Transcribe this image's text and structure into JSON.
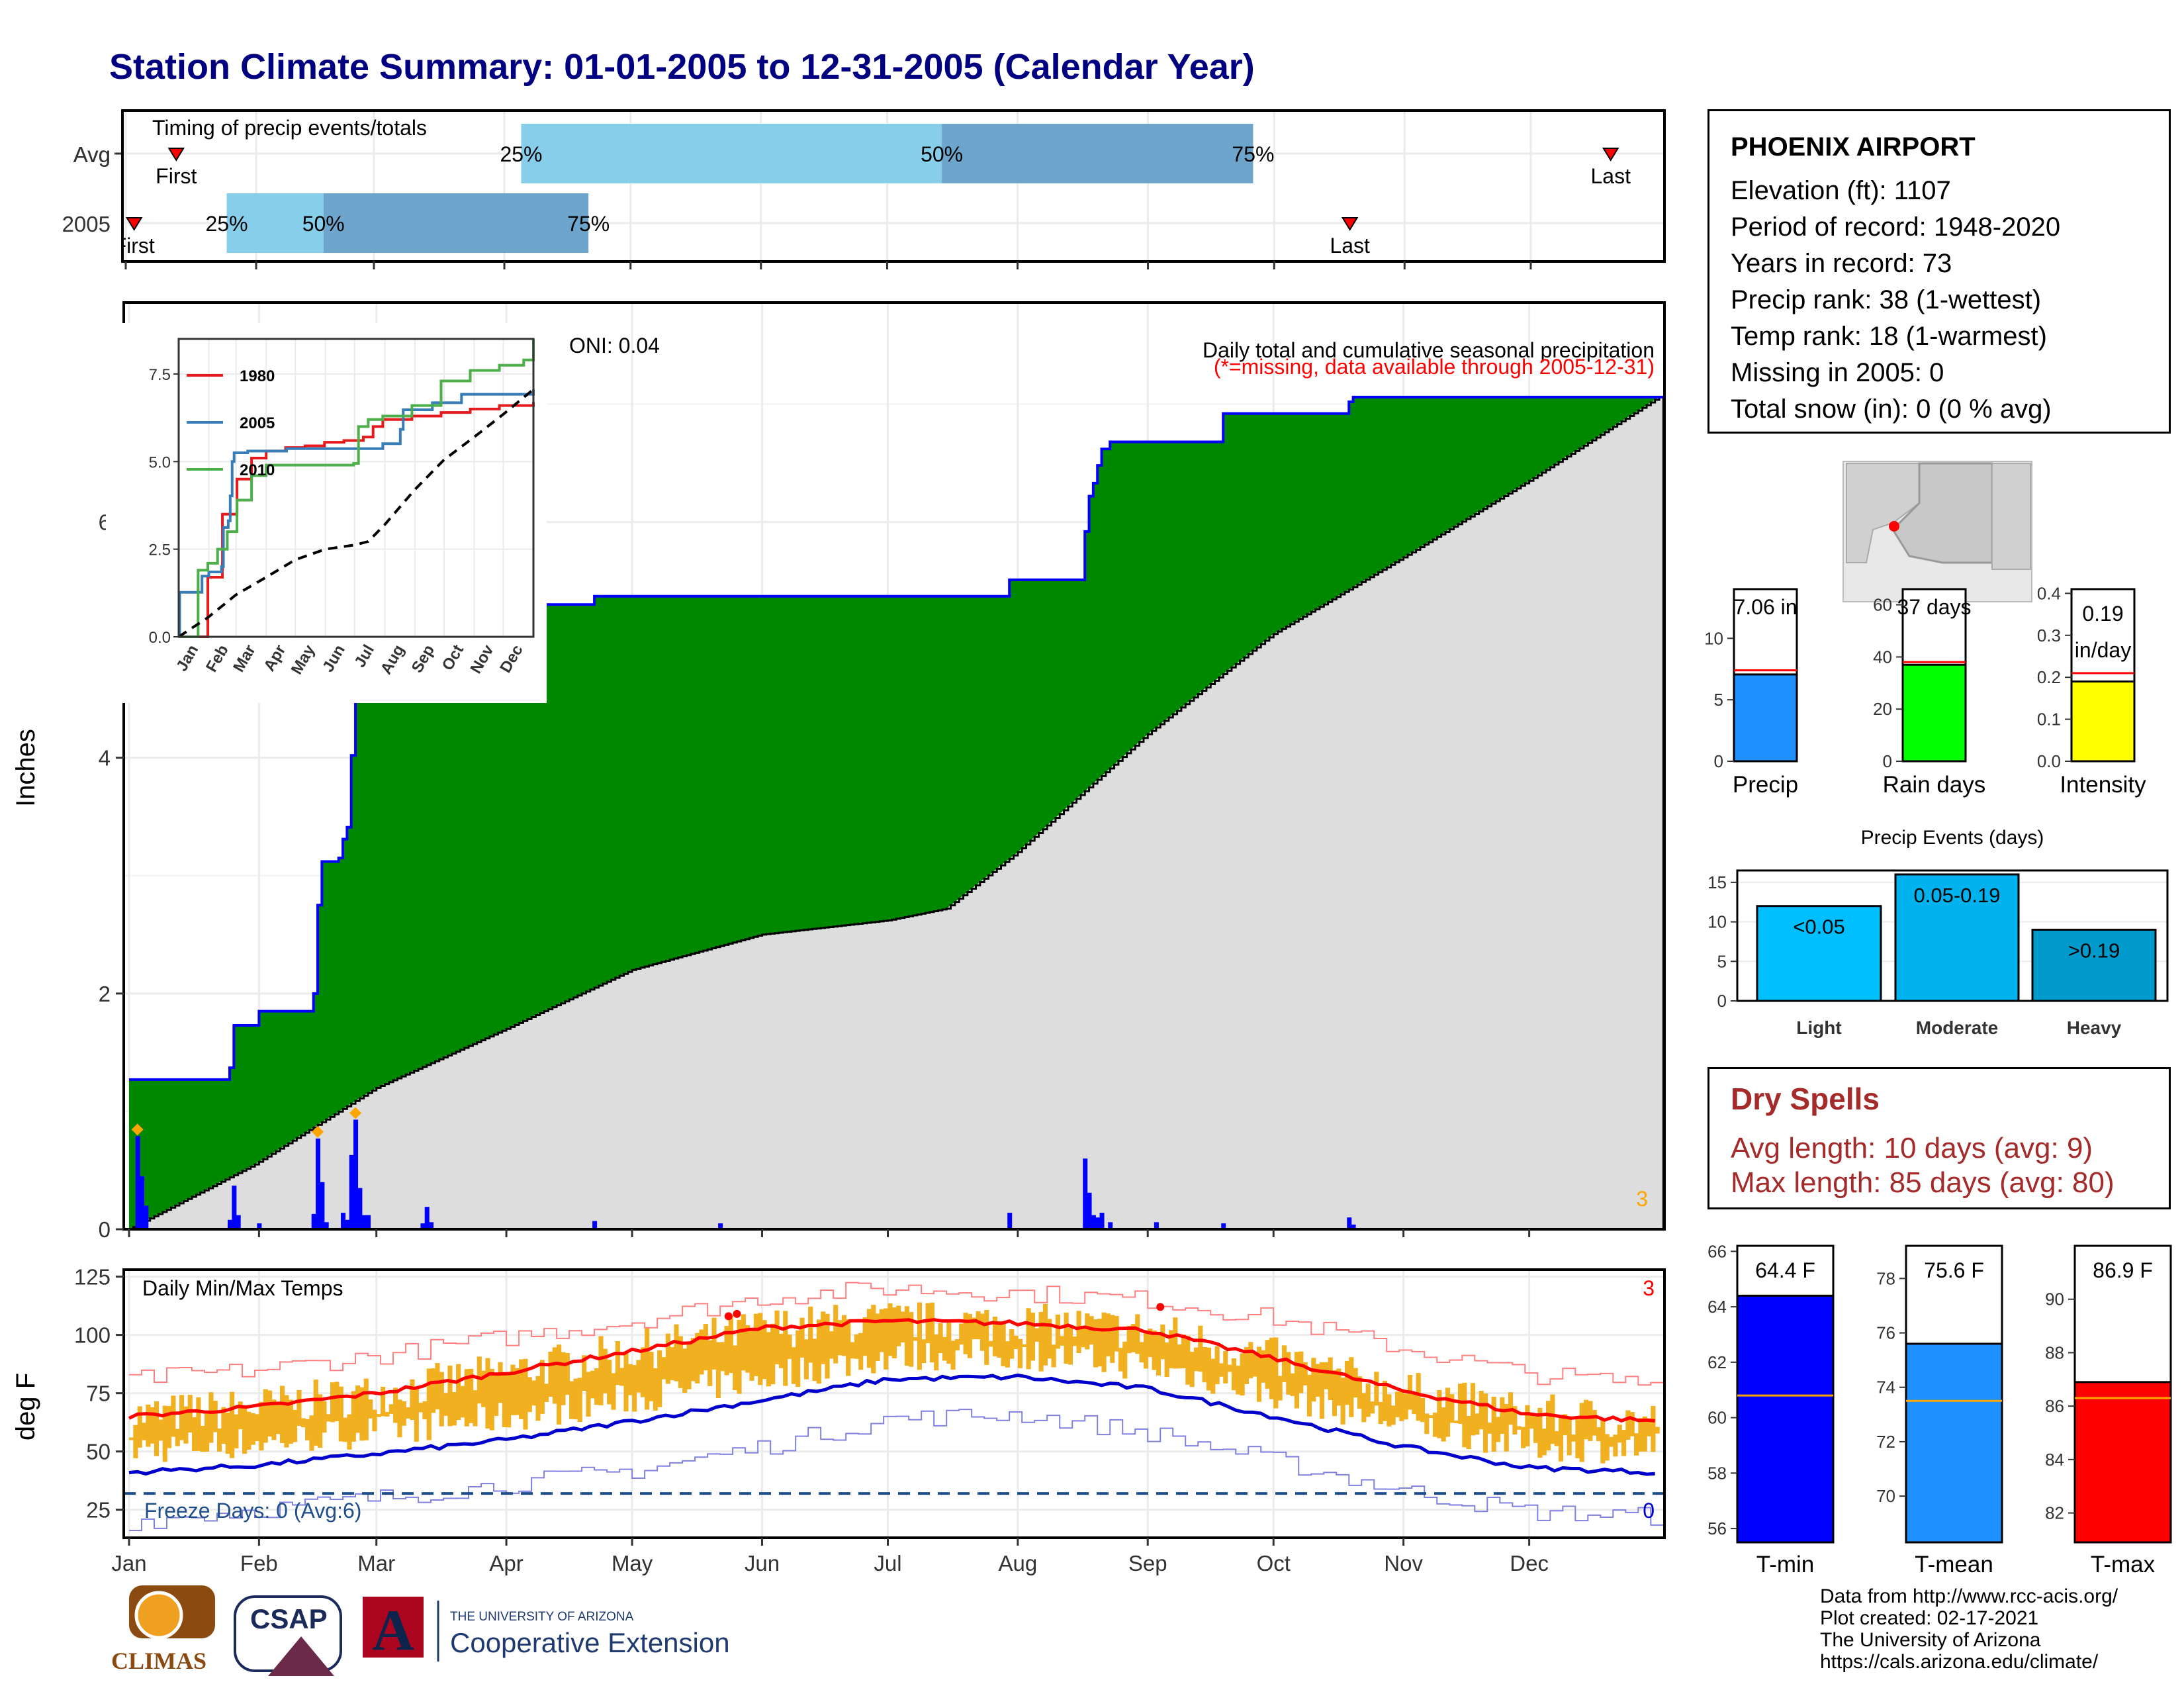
{
  "title": "Station Climate Summary: 01-01-2005 to 12-31-2005 (Calendar Year)",
  "timing": {
    "panel_title": "Timing of precip events/totals",
    "rows": [
      {
        "label": "Avg",
        "first_label": "First",
        "last_label": "Last",
        "first_day": 12,
        "last_day": 353,
        "p25_day": 94,
        "p50_day": 194,
        "p75_day": 268,
        "p25_label": "25%",
        "p50_label": "50%",
        "p75_label": "75%"
      },
      {
        "label": "2005",
        "first_label": "First",
        "last_label": "Last",
        "first_day": 2,
        "last_day": 291,
        "p25_day": 24,
        "p50_day": 47,
        "p75_day": 110,
        "p25_label": "25%",
        "p50_label": "50%",
        "p75_label": "75%"
      }
    ],
    "colors": {
      "light": "#87ceeb",
      "dark": "#6ea5cd",
      "marker": "#ff0000"
    }
  },
  "precip_panel": {
    "oni_label": "ONI: 0.04",
    "title": "Daily total and cumulative seasonal precipitation",
    "subtitle": "(*=missing, data available through 2005-12-31)",
    "ylabel": "Inches",
    "yticks": [
      "0",
      "2",
      "4",
      "6"
    ],
    "corner_value": "3",
    "colors": {
      "observed": "#008800",
      "line": "#0000ff",
      "normal": "#dddddd",
      "bars": "#0000ff",
      "diamond": "#ffa500"
    }
  },
  "inset": {
    "yticks": [
      "0.0",
      "2.5",
      "5.0",
      "7.5"
    ],
    "months": [
      "Jan",
      "Feb",
      "Mar",
      "Apr",
      "May",
      "Jun",
      "Jul",
      "Aug",
      "Sep",
      "Oct",
      "Nov",
      "Dec"
    ],
    "legend": [
      {
        "name": "1980",
        "color": "#e41a1c"
      },
      {
        "name": "2005",
        "color": "#377eb8"
      },
      {
        "name": "2010",
        "color": "#4daf4a"
      }
    ]
  },
  "temp_panel": {
    "title": "Daily Min/Max Temps",
    "ylabel": "deg F",
    "yticks": [
      "25",
      "50",
      "75",
      "100",
      "125"
    ],
    "freeze_label": "Freeze Days: 0 (Avg:6)",
    "top_right_value": "3",
    "bottom_right_value": "0",
    "months": [
      "Jan",
      "Feb",
      "Mar",
      "Apr",
      "May",
      "Jun",
      "Jul",
      "Aug",
      "Sep",
      "Oct",
      "Nov",
      "Dec"
    ],
    "colors": {
      "bars": "#f0b020",
      "max_line": "#ff0000",
      "min_line": "#0000cd",
      "freeze": "#1f4e8c"
    }
  },
  "station": {
    "name": "PHOENIX AIRPORT",
    "lines": [
      "Elevation (ft): 1107",
      "Period of record: 1948-2020",
      "Years in record: 73",
      "Precip rank: 38 (1-wettest)",
      "Temp rank: 18 (1-warmest)",
      "Missing in 2005: 0",
      "Total snow (in): 0 (0 % avg)"
    ]
  },
  "summary_bars": [
    {
      "name": "Precip",
      "value_label": "7.06 in",
      "value": 7.06,
      "avg": 7.4,
      "ymax": 14,
      "yticks": [
        "0",
        "5",
        "10"
      ],
      "tick_vals": [
        0,
        5,
        10
      ],
      "color": "#1e90ff"
    },
    {
      "name": "Rain days",
      "value_label": "37 days",
      "value": 37,
      "avg": 38,
      "ymax": 66,
      "yticks": [
        "0",
        "20",
        "40",
        "60"
      ],
      "tick_vals": [
        0,
        20,
        40,
        60
      ],
      "color": "#00ff00"
    },
    {
      "name": "Intensity",
      "value_label": "0.19 in/day",
      "value": 0.19,
      "avg": 0.21,
      "ymax": 0.41,
      "yticks": [
        "0.0",
        "0.1",
        "0.2",
        "0.3",
        "0.4"
      ],
      "tick_vals": [
        0,
        0.1,
        0.2,
        0.3,
        0.4
      ],
      "color": "#ffff00"
    }
  ],
  "precip_events": {
    "title": "Precip Events (days)",
    "yticks": [
      "0",
      "5",
      "10",
      "15"
    ],
    "categories": [
      "Light",
      "Moderate",
      "Heavy"
    ],
    "labels": [
      "<0.05",
      "0.05-0.19",
      ">0.19"
    ],
    "values": [
      12,
      16,
      9
    ],
    "colors": [
      "#00bfff",
      "#00b2ee",
      "#009acd"
    ]
  },
  "dry_spells": {
    "title": "Dry Spells",
    "avg_line": "Avg length: 10 days (avg: 9)",
    "max_line": "Max length: 85 days (avg: 80)"
  },
  "temp_bars": [
    {
      "name": "T-min",
      "value_label": "64.4 F",
      "value": 64.4,
      "avg": 60.8,
      "ymin": 55.5,
      "ymax": 66.2,
      "yticks": [
        "56",
        "58",
        "60",
        "62",
        "64",
        "66"
      ],
      "tick_vals": [
        56,
        58,
        60,
        62,
        64,
        66
      ],
      "color": "#0000ff"
    },
    {
      "name": "T-mean",
      "value_label": "75.6 F",
      "value": 75.6,
      "avg": 73.5,
      "ymin": 68.3,
      "ymax": 79.2,
      "yticks": [
        "70",
        "72",
        "74",
        "76",
        "78"
      ],
      "tick_vals": [
        70,
        72,
        74,
        76,
        78
      ],
      "color": "#1e90ff"
    },
    {
      "name": "T-max",
      "value_label": "86.9 F",
      "value": 86.9,
      "avg": 86.3,
      "ymin": 80.9,
      "ymax": 92.0,
      "yticks": [
        "82",
        "84",
        "86",
        "88",
        "90"
      ],
      "tick_vals": [
        82,
        84,
        86,
        88,
        90
      ],
      "color": "#ff0000"
    }
  ],
  "credits": [
    "Data from http://www.rcc-acis.org/",
    "Plot created: 02-17-2021",
    "The University of Arizona",
    "https://cals.arizona.edu/climate/"
  ],
  "logos": {
    "climas": "CLIMAS",
    "csap": "CSAP",
    "ua_small": "THE UNIVERSITY OF ARIZONA",
    "ua_big": "Cooperative Extension"
  },
  "chart_data": [
    {
      "type": "bar",
      "title": "Timing of precip events/totals",
      "categories": [
        "Avg",
        "2005"
      ],
      "series": [
        {
          "name": "First",
          "values": [
            12,
            2
          ]
        },
        {
          "name": "25%",
          "values": [
            94,
            24
          ]
        },
        {
          "name": "50%",
          "values": [
            194,
            47
          ]
        },
        {
          "name": "75%",
          "values": [
            268,
            110
          ]
        },
        {
          "name": "Last",
          "values": [
            353,
            291
          ]
        }
      ]
    },
    {
      "type": "area",
      "title": "Daily total and cumulative seasonal precipitation",
      "ylabel": "Inches",
      "ylim": [
        0,
        7.75
      ],
      "observed_cumulative": [
        [
          1,
          1.27
        ],
        [
          23,
          1.27
        ],
        [
          24,
          1.37
        ],
        [
          25,
          1.73
        ],
        [
          31,
          1.85
        ],
        [
          43,
          1.85
        ],
        [
          44,
          2.0
        ],
        [
          45,
          2.75
        ],
        [
          46,
          3.12
        ],
        [
          50,
          3.15
        ],
        [
          51,
          3.31
        ],
        [
          52,
          3.41
        ],
        [
          53,
          4.02
        ],
        [
          54,
          4.55
        ],
        [
          55,
          5.0
        ],
        [
          56,
          5.12
        ],
        [
          57,
          5.25
        ],
        [
          70,
          5.25
        ],
        [
          71,
          5.3
        ],
        [
          110,
          5.3
        ],
        [
          111,
          5.37
        ],
        [
          209,
          5.37
        ],
        [
          210,
          5.51
        ],
        [
          227,
          5.51
        ],
        [
          228,
          5.92
        ],
        [
          229,
          6.22
        ],
        [
          230,
          6.33
        ],
        [
          231,
          6.48
        ],
        [
          232,
          6.62
        ],
        [
          234,
          6.68
        ],
        [
          247,
          6.68
        ],
        [
          248,
          6.68
        ],
        [
          260,
          6.68
        ],
        [
          261,
          6.92
        ],
        [
          290,
          6.92
        ],
        [
          291,
          7.02
        ],
        [
          292,
          7.06
        ],
        [
          365,
          7.06
        ]
      ],
      "normal_cumulative": [
        [
          0,
          0
        ],
        [
          30,
          0.55
        ],
        [
          59,
          1.2
        ],
        [
          90,
          1.7
        ],
        [
          120,
          2.2
        ],
        [
          151,
          2.5
        ],
        [
          181,
          2.62
        ],
        [
          195,
          2.72
        ],
        [
          212,
          3.2
        ],
        [
          243,
          4.2
        ],
        [
          273,
          5.05
        ],
        [
          304,
          5.7
        ],
        [
          334,
          6.35
        ],
        [
          365,
          7.06
        ]
      ],
      "daily_bars": [
        [
          2,
          0.79
        ],
        [
          3,
          0.45
        ],
        [
          4,
          0.2
        ],
        [
          24,
          0.08
        ],
        [
          25,
          0.37
        ],
        [
          26,
          0.12
        ],
        [
          31,
          0.05
        ],
        [
          44,
          0.13
        ],
        [
          45,
          0.77
        ],
        [
          46,
          0.4
        ],
        [
          47,
          0.06
        ],
        [
          51,
          0.14
        ],
        [
          52,
          0.08
        ],
        [
          53,
          0.63
        ],
        [
          54,
          0.93
        ],
        [
          55,
          0.35
        ],
        [
          56,
          0.12
        ],
        [
          57,
          0.12
        ],
        [
          70,
          0.05
        ],
        [
          71,
          0.19
        ],
        [
          72,
          0.06
        ],
        [
          111,
          0.07
        ],
        [
          141,
          0.05
        ],
        [
          210,
          0.14
        ],
        [
          228,
          0.6
        ],
        [
          229,
          0.31
        ],
        [
          230,
          0.12
        ],
        [
          231,
          0.1
        ],
        [
          232,
          0.14
        ],
        [
          234,
          0.06
        ],
        [
          245,
          0.06
        ],
        [
          261,
          0.05
        ],
        [
          291,
          0.1
        ],
        [
          292,
          0.04
        ]
      ]
    },
    {
      "type": "line",
      "title": "",
      "xlabel": "",
      "ylabel": "",
      "ylim": [
        0,
        8.5
      ],
      "series": [
        {
          "name": "1980",
          "x": [
            0,
            15,
            30,
            45,
            60,
            75,
            90,
            110,
            130,
            150,
            170,
            190,
            200,
            210,
            240,
            270,
            300,
            330,
            365
          ],
          "values": [
            0,
            0,
            1.7,
            3.5,
            4.5,
            5.1,
            5.3,
            5.4,
            5.45,
            5.55,
            5.6,
            5.7,
            6.0,
            6.2,
            6.3,
            6.4,
            6.5,
            6.6,
            6.7
          ]
        },
        {
          "name": "2005",
          "x": [
            0,
            1,
            23,
            24,
            31,
            44,
            46,
            51,
            53,
            55,
            57,
            71,
            111,
            210,
            228,
            231,
            261,
            291,
            365
          ],
          "values": [
            0,
            1.27,
            1.27,
            1.73,
            1.85,
            2.0,
            3.12,
            3.31,
            4.02,
            5.0,
            5.25,
            5.3,
            5.37,
            5.51,
            5.92,
            6.48,
            6.68,
            6.92,
            7.06
          ]
        },
        {
          "name": "2010",
          "x": [
            0,
            15,
            20,
            30,
            40,
            50,
            60,
            75,
            90,
            120,
            150,
            180,
            185,
            195,
            210,
            240,
            270,
            300,
            330,
            355,
            365
          ],
          "values": [
            0,
            0,
            1.9,
            2.1,
            2.5,
            3.0,
            3.9,
            4.6,
            4.9,
            4.9,
            4.9,
            4.95,
            6.0,
            6.2,
            6.3,
            6.6,
            7.3,
            7.6,
            7.75,
            7.9,
            8.5
          ]
        },
        {
          "name": "Average",
          "x": [
            0,
            30,
            59,
            90,
            120,
            151,
            181,
            195,
            212,
            243,
            273,
            304,
            334,
            365
          ],
          "values": [
            0,
            0.55,
            1.2,
            1.7,
            2.2,
            2.5,
            2.62,
            2.72,
            3.2,
            4.2,
            5.05,
            5.7,
            6.35,
            7.06
          ]
        }
      ]
    },
    {
      "type": "line",
      "title": "Daily Min/Max Temps",
      "ylabel": "deg F",
      "ylim": [
        13,
        128
      ],
      "series": [
        {
          "name": "avg max",
          "x": [
            0,
            30,
            59,
            90,
            120,
            151,
            181,
            212,
            243,
            273,
            304,
            334,
            365
          ],
          "values": [
            65,
            69,
            75,
            84,
            93,
            103,
            106,
            105,
            102,
            90,
            76,
            66,
            63
          ]
        },
        {
          "name": "avg min",
          "x": [
            0,
            30,
            59,
            90,
            120,
            151,
            181,
            212,
            243,
            273,
            304,
            334,
            365
          ],
          "values": [
            41,
            44,
            49,
            55,
            63,
            72,
            81,
            82,
            77,
            65,
            52,
            43,
            41
          ]
        },
        {
          "name": "record max",
          "x": [
            0,
            30,
            59,
            90,
            120,
            151,
            181,
            212,
            243,
            273,
            304,
            334,
            365
          ],
          "values": [
            81,
            85,
            91,
            99,
            106,
            116,
            120,
            118,
            115,
            107,
            94,
            83,
            79
          ]
        },
        {
          "name": "record min",
          "x": [
            0,
            30,
            59,
            90,
            120,
            151,
            181,
            212,
            243,
            273,
            304,
            334,
            365
          ],
          "values": [
            20,
            25,
            30,
            36,
            42,
            52,
            64,
            66,
            58,
            46,
            33,
            24,
            22
          ]
        }
      ]
    },
    {
      "type": "bar",
      "title": "",
      "categories": [
        "Precip",
        "Rain days",
        "Intensity"
      ],
      "values": [
        7.06,
        37,
        0.19
      ]
    },
    {
      "type": "bar",
      "title": "Precip Events (days)",
      "categories": [
        "Light",
        "Moderate",
        "Heavy"
      ],
      "values": [
        12,
        16,
        9
      ]
    },
    {
      "type": "bar",
      "title": "",
      "categories": [
        "T-min",
        "T-mean",
        "T-max"
      ],
      "values": [
        64.4,
        75.6,
        86.9
      ]
    }
  ]
}
